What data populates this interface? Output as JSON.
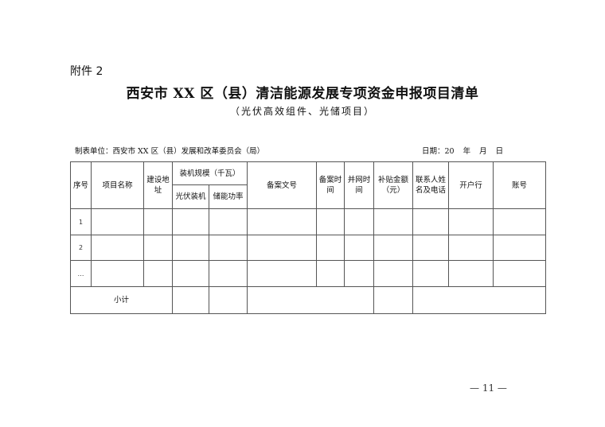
{
  "attachment_label": "附件 2",
  "title": "西安市 XX 区（县）清洁能源发展专项资金申报项目清单",
  "subtitle": "（光伏高效组件、光储项目）",
  "preparing_unit": "制表单位：西安市 XX 区（县）发展和改革委员会（局）",
  "date_label": "日期：20  年  月  日",
  "table": {
    "headers": {
      "seq": "序号",
      "project_name": "项目名称",
      "address": "建设地址",
      "capacity": "装机规模（千瓦）",
      "pv_capacity": "光伏装机",
      "storage_power": "储能功率",
      "filing_no": "备案文号",
      "filing_time": "备案时间",
      "grid_time": "并网时间",
      "subsidy": "补贴金额（元）",
      "contact": "联系人姓名及电话",
      "bank": "开户行",
      "account": "账号"
    },
    "rows": [
      "1",
      "2",
      "…"
    ],
    "subtotal_label": "小计"
  },
  "page_number": "— 11 —"
}
